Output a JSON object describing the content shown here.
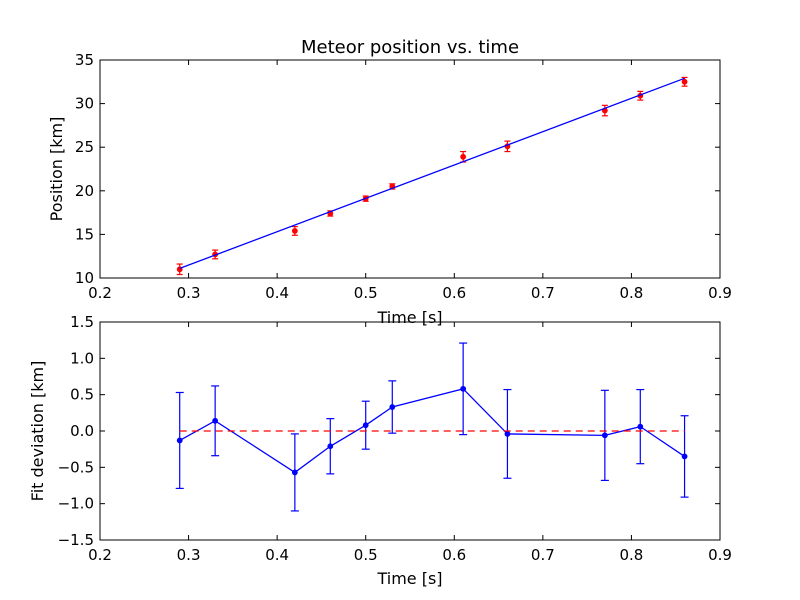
{
  "chart_data": [
    {
      "type": "scatter",
      "title": "Meteor position vs. time",
      "xlabel": "Time [s]",
      "ylabel": "Position [km]",
      "xlim": [
        0.2,
        0.9
      ],
      "ylim": [
        10,
        35
      ],
      "x_ticks": [
        "0.2",
        "0.3",
        "0.4",
        "0.5",
        "0.6",
        "0.7",
        "0.8",
        "0.9"
      ],
      "y_ticks": [
        "10",
        "15",
        "20",
        "25",
        "30",
        "35"
      ],
      "grid": false,
      "legend": "none",
      "series": [
        {
          "kind": "points_with_errorbars",
          "color": "#ff0000",
          "x": [
            0.29,
            0.33,
            0.42,
            0.46,
            0.5,
            0.53,
            0.61,
            0.66,
            0.77,
            0.81,
            0.86
          ],
          "y": [
            11.0,
            12.7,
            15.4,
            17.4,
            19.1,
            20.5,
            23.9,
            25.1,
            29.2,
            30.9,
            32.5
          ],
          "yerr": [
            0.6,
            0.5,
            0.5,
            0.3,
            0.3,
            0.3,
            0.6,
            0.6,
            0.6,
            0.5,
            0.5
          ]
        },
        {
          "kind": "fit_line",
          "color": "#0000ff",
          "x": [
            0.29,
            0.86
          ],
          "y": [
            11.1,
            32.9
          ]
        }
      ]
    },
    {
      "type": "line",
      "title": "",
      "xlabel": "Time [s]",
      "ylabel": "Fit deviation [km]",
      "xlim": [
        0.2,
        0.9
      ],
      "ylim": [
        -1.5,
        1.5
      ],
      "x_ticks": [
        "0.2",
        "0.3",
        "0.4",
        "0.5",
        "0.6",
        "0.7",
        "0.8",
        "0.9"
      ],
      "y_ticks": [
        "−1.5",
        "−1.0",
        "−0.5",
        "0.0",
        "0.5",
        "1.0",
        "1.5"
      ],
      "grid": false,
      "legend": "none",
      "series": [
        {
          "kind": "line_with_errorbars",
          "color": "#0000ff",
          "x": [
            0.29,
            0.33,
            0.42,
            0.46,
            0.5,
            0.53,
            0.61,
            0.66,
            0.77,
            0.81,
            0.86
          ],
          "y": [
            -0.13,
            0.14,
            -0.57,
            -0.21,
            0.08,
            0.33,
            0.58,
            -0.04,
            -0.06,
            0.06,
            -0.35
          ],
          "yerr": [
            0.66,
            0.48,
            0.53,
            0.38,
            0.33,
            0.36,
            0.63,
            0.61,
            0.62,
            0.51,
            0.56
          ]
        },
        {
          "kind": "reference_line",
          "color": "#ff0000",
          "style": "dashed",
          "x": [
            0.29,
            0.86
          ],
          "y": [
            0.0,
            0.0
          ]
        }
      ]
    }
  ]
}
